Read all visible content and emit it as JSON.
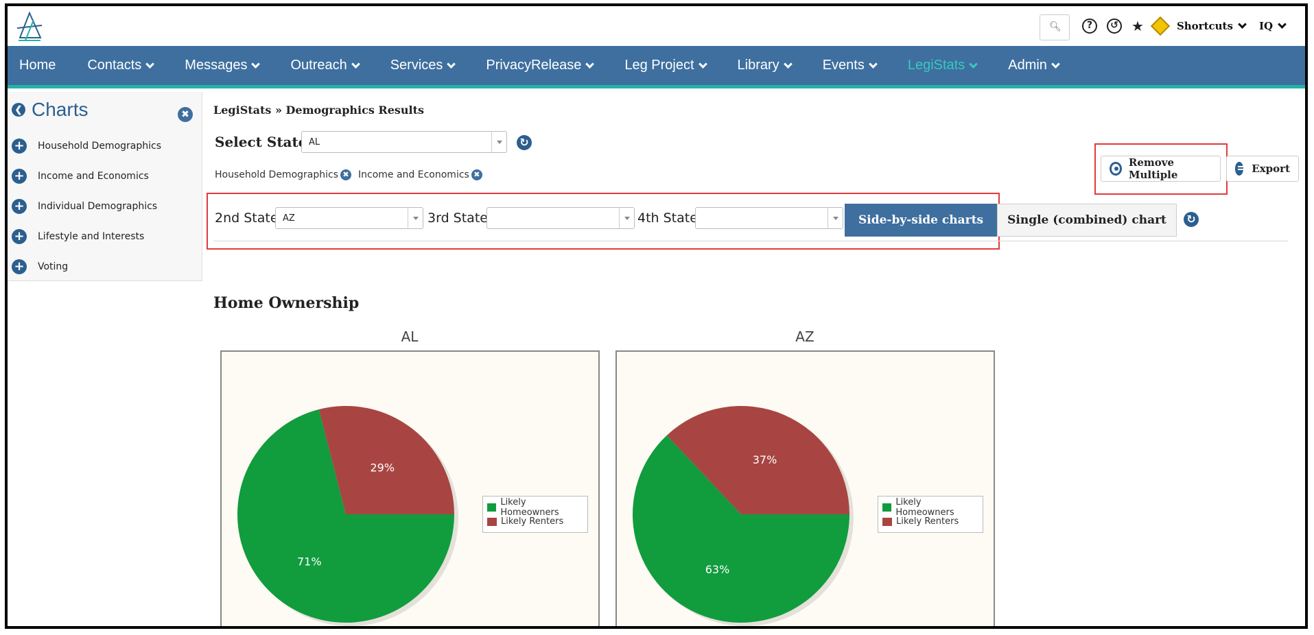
{
  "topbar": {
    "search_icon": "search-icon",
    "shortcuts_label": "Shortcuts",
    "user_label": "IQ"
  },
  "nav": {
    "items": [
      {
        "label": "Home",
        "has_menu": false
      },
      {
        "label": "Contacts",
        "has_menu": true
      },
      {
        "label": "Messages",
        "has_menu": true
      },
      {
        "label": "Outreach",
        "has_menu": true
      },
      {
        "label": "Services",
        "has_menu": true
      },
      {
        "label": "PrivacyRelease",
        "has_menu": true
      },
      {
        "label": "Leg Project",
        "has_menu": true
      },
      {
        "label": "Library",
        "has_menu": true
      },
      {
        "label": "Events",
        "has_menu": true
      },
      {
        "label": "LegiStats",
        "has_menu": true,
        "active": true
      },
      {
        "label": "Admin",
        "has_menu": true
      }
    ]
  },
  "sidebar": {
    "title": "Charts",
    "items": [
      {
        "label": "Household Demographics"
      },
      {
        "label": "Income and Economics"
      },
      {
        "label": "Individual Demographics"
      },
      {
        "label": "Lifestyle and Interests"
      },
      {
        "label": "Voting"
      }
    ]
  },
  "main": {
    "breadcrumb": "LegiStats » Demographics Results",
    "select_state_label": "Select State",
    "selected_state": "AL",
    "active_tags": [
      "Household Demographics",
      "Income and Economics"
    ],
    "compare": {
      "second_label": "2nd State",
      "second_value": "AZ",
      "third_label": "3rd State",
      "third_value": "",
      "fourth_label": "4th State",
      "fourth_value": ""
    },
    "side_by_side_label": "Side-by-side charts",
    "single_label": "Single (combined) chart",
    "remove_multiple_label": "Remove Multiple",
    "export_label": "Export",
    "section_title": "Home Ownership"
  },
  "colors": {
    "homeowners": "#119c3e",
    "renters": "#a84542",
    "nav_bg": "#3e6f9f",
    "active_nav": "#39c8be",
    "highlight": "#e23a3a"
  },
  "chart_data": [
    {
      "type": "pie",
      "title": "AL",
      "categories": [
        "Likely Homeowners",
        "Likely Renters"
      ],
      "values": [
        71,
        29
      ],
      "data_labels": [
        "71%",
        "29%"
      ],
      "legend": "right"
    },
    {
      "type": "pie",
      "title": "AZ",
      "categories": [
        "Likely Homeowners",
        "Likely Renters"
      ],
      "values": [
        63,
        37
      ],
      "data_labels": [
        "63%",
        "37%"
      ],
      "legend": "right"
    }
  ]
}
